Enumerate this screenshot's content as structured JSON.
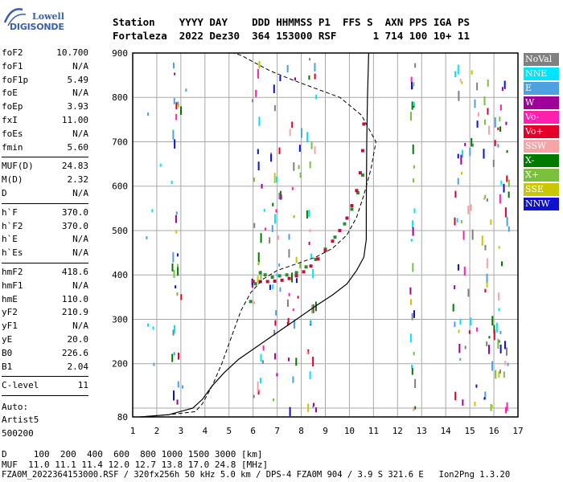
{
  "logo": {
    "line1": "Lowell",
    "line2": "DIGISONDE"
  },
  "header": {
    "labels": "Station    YYYY DAY    DDD HHMMSS P1  FFS S  AXN PPS IGA PS",
    "values": "Fortaleza  2022 Dez30  364 153000 RSF      1 714 100 10+ 11"
  },
  "params": [
    {
      "k": "foF2",
      "v": "10.700"
    },
    {
      "k": "foF1",
      "v": "N/A"
    },
    {
      "k": "foF1p",
      "v": "5.49"
    },
    {
      "k": "foE",
      "v": "N/A"
    },
    {
      "k": "foEp",
      "v": "3.93"
    },
    {
      "k": "fxI",
      "v": "11.00"
    },
    {
      "k": "foEs",
      "v": "N/A"
    },
    {
      "k": "fmin",
      "v": "5.60"
    },
    {
      "k": "MUF(D)",
      "v": "24.83"
    },
    {
      "k": "M(D)",
      "v": "2.32"
    },
    {
      "k": "D",
      "v": "N/A"
    },
    {
      "k": "h`F",
      "v": "370.0"
    },
    {
      "k": "h`F2",
      "v": "370.0"
    },
    {
      "k": "h`E",
      "v": "N/A"
    },
    {
      "k": "h`Es",
      "v": "N/A"
    },
    {
      "k": "hmF2",
      "v": "418.6"
    },
    {
      "k": "hmF1",
      "v": "N/A"
    },
    {
      "k": "hmE",
      "v": "110.0"
    },
    {
      "k": "yF2",
      "v": "210.9"
    },
    {
      "k": "yF1",
      "v": "N/A"
    },
    {
      "k": "yE",
      "v": "20.0"
    },
    {
      "k": "B0",
      "v": "226.6"
    },
    {
      "k": "B1",
      "v": "2.04"
    },
    {
      "k": "C-level",
      "v": "11"
    }
  ],
  "auto": {
    "l1": "Auto:",
    "l2": "Artist5",
    "l3": "500200"
  },
  "legend": [
    {
      "label": "NoVal",
      "color": "#808080"
    },
    {
      "label": "NNE",
      "color": "#00e5ff"
    },
    {
      "label": "E",
      "color": "#4fa0e0"
    },
    {
      "label": "W",
      "color": "#a0009a"
    },
    {
      "label": "Vo-",
      "color": "#ff20b0"
    },
    {
      "label": "Vo+",
      "color": "#e0002a"
    },
    {
      "label": "SSW",
      "color": "#f5a5a5"
    },
    {
      "label": "X-",
      "color": "#007a00"
    },
    {
      "label": "X+",
      "color": "#7abf40"
    },
    {
      "label": "SSE",
      "color": "#c8c800"
    },
    {
      "label": "NNW",
      "color": "#1010d0"
    }
  ],
  "footer": {
    "d_line": "D     100  200  400  600  800 1000 1500 3000 [km]",
    "muf_line": "MUF  11.0 11.1 11.4 12.0 12.7 13.8 17.0 24.8 [MHz]",
    "file_line": "FZA0M_2022364153000.RSF / 320fx256h 50 kHz 5.0 km / DPS-4 FZA0M 904 / 3.9 S 321.6 E   Ion2Png 1.3.20"
  },
  "chart_data": {
    "type": "scatter",
    "xlim": [
      1,
      17
    ],
    "ylim": [
      80,
      900
    ],
    "xticks": [
      1,
      2,
      3,
      4,
      5,
      6,
      7,
      8,
      9,
      10,
      11,
      12,
      13,
      14,
      15,
      16,
      17
    ],
    "yticks": [
      100,
      200,
      300,
      400,
      500,
      600,
      700,
      800,
      900
    ],
    "ytick_labels": [
      "",
      "200",
      "300",
      "400",
      "500",
      "600",
      "700",
      "800",
      "900"
    ],
    "extra_ylabel": "80",
    "grid": true,
    "trace_o": [
      [
        6.0,
        385
      ],
      [
        6.3,
        385
      ],
      [
        6.6,
        385
      ],
      [
        6.9,
        386
      ],
      [
        7.2,
        388
      ],
      [
        7.5,
        392
      ],
      [
        7.8,
        398
      ],
      [
        8.1,
        407
      ],
      [
        8.4,
        420
      ],
      [
        8.7,
        436
      ],
      [
        9.0,
        455
      ],
      [
        9.3,
        476
      ],
      [
        9.6,
        500
      ],
      [
        9.9,
        528
      ],
      [
        10.1,
        556
      ],
      [
        10.3,
        590
      ],
      [
        10.45,
        630
      ],
      [
        10.55,
        680
      ],
      [
        10.6,
        740
      ]
    ],
    "trace_x": [
      [
        5.9,
        340
      ],
      [
        6.1,
        380
      ],
      [
        6.3,
        405
      ],
      [
        6.5,
        400
      ],
      [
        6.8,
        395
      ],
      [
        7.1,
        398
      ],
      [
        7.4,
        400
      ],
      [
        7.8,
        405
      ],
      [
        8.2,
        418
      ],
      [
        8.6,
        435
      ],
      [
        9.0,
        458
      ],
      [
        9.4,
        485
      ],
      [
        9.8,
        515
      ],
      [
        10.1,
        548
      ],
      [
        10.35,
        585
      ],
      [
        10.55,
        625
      ]
    ],
    "profile_solid": [
      [
        1.3,
        80
      ],
      [
        2.5,
        85
      ],
      [
        3.5,
        100
      ],
      [
        3.9,
        120
      ],
      [
        4.3,
        150
      ],
      [
        4.8,
        180
      ],
      [
        5.4,
        210
      ],
      [
        6.2,
        240
      ],
      [
        7.0,
        270
      ],
      [
        7.8,
        300
      ],
      [
        8.6,
        330
      ],
      [
        9.3,
        355
      ],
      [
        9.9,
        380
      ],
      [
        10.3,
        410
      ],
      [
        10.6,
        440
      ],
      [
        10.7,
        480
      ],
      [
        10.7,
        550
      ],
      [
        10.72,
        700
      ],
      [
        10.75,
        800
      ],
      [
        10.8,
        900
      ]
    ],
    "profile_dashed": [
      [
        1.3,
        80
      ],
      [
        2.5,
        85
      ],
      [
        3.6,
        92
      ],
      [
        3.9,
        110
      ],
      [
        4.3,
        150
      ],
      [
        4.7,
        200
      ],
      [
        5.1,
        260
      ],
      [
        5.5,
        320
      ],
      [
        5.9,
        360
      ],
      [
        6.4,
        390
      ],
      [
        7.0,
        410
      ],
      [
        7.8,
        425
      ],
      [
        8.6,
        440
      ],
      [
        9.3,
        460
      ],
      [
        9.9,
        490
      ],
      [
        10.3,
        530
      ],
      [
        10.6,
        580
      ],
      [
        10.9,
        640
      ],
      [
        11.1,
        700
      ],
      [
        10.5,
        760
      ],
      [
        9.6,
        800
      ],
      [
        8.6,
        820
      ],
      [
        7.6,
        840
      ],
      [
        6.7,
        860
      ],
      [
        6.0,
        880
      ],
      [
        5.5,
        895
      ],
      [
        5.2,
        900
      ],
      [
        4.4,
        900
      ]
    ]
  }
}
